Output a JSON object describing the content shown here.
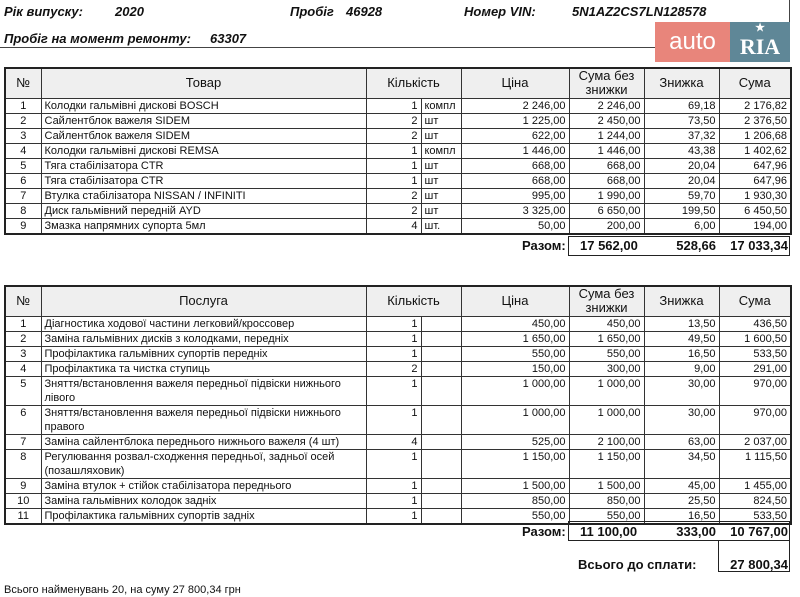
{
  "header": {
    "year_label": "Рік випуску:",
    "year": "2020",
    "mileage_label": "Пробіг",
    "mileage": "46928",
    "vin_label": "Номер VIN:",
    "vin": "5N1AZ2CS7LN128578",
    "repair_mileage_label": "Пробіг на момент  ремонту:",
    "repair_mileage": "63307"
  },
  "logo": {
    "left": "auto",
    "right": "RIA",
    "star": "★",
    "colors": {
      "auto": "#e8857b",
      "ria": "#5f8797"
    }
  },
  "parts": {
    "columns": [
      "№",
      "Товар",
      "Кількість",
      "Ціна",
      "Сума без знижки",
      "Знижка",
      "Сума"
    ],
    "rows": [
      [
        "1",
        "Колодки гальмівні дискові BOSCH",
        "1",
        "компл",
        "2 246,00",
        "2 246,00",
        "69,18",
        "2 176,82"
      ],
      [
        "2",
        "Сайлентблок важеля SIDEM",
        "2",
        "шт",
        "1 225,00",
        "2 450,00",
        "73,50",
        "2 376,50"
      ],
      [
        "3",
        "Сайлентблок важеля SIDEM",
        "2",
        "шт",
        "622,00",
        "1 244,00",
        "37,32",
        "1 206,68"
      ],
      [
        "4",
        "Колодки гальмівні дискові REMSA",
        "1",
        "компл",
        "1 446,00",
        "1 446,00",
        "43,38",
        "1 402,62"
      ],
      [
        "5",
        "Тяга стабілізатора CTR",
        "1",
        "шт",
        "668,00",
        "668,00",
        "20,04",
        "647,96"
      ],
      [
        "6",
        "Тяга стабілізатора CTR",
        "1",
        "шт",
        "668,00",
        "668,00",
        "20,04",
        "647,96"
      ],
      [
        "7",
        "Втулка стабілізатора NISSAN / INFINITI",
        "2",
        "шт",
        "995,00",
        "1 990,00",
        "59,70",
        "1 930,30"
      ],
      [
        "8",
        "Диск гальмівний передній AYD",
        "2",
        "шт",
        "3 325,00",
        "6 650,00",
        "199,50",
        "6 450,50"
      ],
      [
        "9",
        "Змазка напрямних супорта 5мл",
        "4",
        "шт.",
        "50,00",
        "200,00",
        "6,00",
        "194,00"
      ]
    ],
    "total_label": "Разом:",
    "total_gross": "17 562,00",
    "total_discount": "528,66",
    "total_net": "17 033,34"
  },
  "services": {
    "columns": [
      "№",
      "Послуга",
      "Кількість",
      "Ціна",
      "Сума без знижки",
      "Знижка",
      "Сума"
    ],
    "rows": [
      [
        "1",
        "Діагностика ходової частини легковий/кроссовер",
        "1",
        "",
        "450,00",
        "450,00",
        "13,50",
        "436,50"
      ],
      [
        "2",
        "Заміна гальмівних дисків з колодками, передніх",
        "1",
        "",
        "1 650,00",
        "1 650,00",
        "49,50",
        "1 600,50"
      ],
      [
        "3",
        "Профілактика гальмівних супортів передніх",
        "1",
        "",
        "550,00",
        "550,00",
        "16,50",
        "533,50"
      ],
      [
        "4",
        "Профілактика та чистка ступиць",
        "2",
        "",
        "150,00",
        "300,00",
        "9,00",
        "291,00"
      ],
      [
        "5",
        "Зняття/встановлення важеля передньої підвіски нижнього лівого",
        "1",
        "",
        "1 000,00",
        "1 000,00",
        "30,00",
        "970,00"
      ],
      [
        "6",
        "Зняття/встановлення важеля передньої підвіски нижнього правого",
        "1",
        "",
        "1 000,00",
        "1 000,00",
        "30,00",
        "970,00"
      ],
      [
        "7",
        "Заміна сайлентблока переднього нижнього важеля (4 шт)",
        "4",
        "",
        "525,00",
        "2 100,00",
        "63,00",
        "2 037,00"
      ],
      [
        "8",
        "Регулювання розвал-сходження передньої, задньої осей (позашляховик)",
        "1",
        "",
        "1 150,00",
        "1 150,00",
        "34,50",
        "1 115,50"
      ],
      [
        "9",
        "Заміна втулок + стійок стабілізатора переднього",
        "1",
        "",
        "1 500,00",
        "1 500,00",
        "45,00",
        "1 455,00"
      ],
      [
        "10",
        "Заміна гальмівних колодок задніх",
        "1",
        "",
        "850,00",
        "850,00",
        "25,50",
        "824,50"
      ],
      [
        "11",
        "Профілактика гальмівних супортів задніх",
        "1",
        "",
        "550,00",
        "550,00",
        "16,50",
        "533,50"
      ]
    ],
    "total_label": "Разом:",
    "total_gross": "11 100,00",
    "total_discount": "333,00",
    "total_net": "10 767,00"
  },
  "grand_total": {
    "label": "Всього до сплати:",
    "value": "27 800,34"
  },
  "footer": "Всього найменувань 20, на суму 27 800,34 грн"
}
